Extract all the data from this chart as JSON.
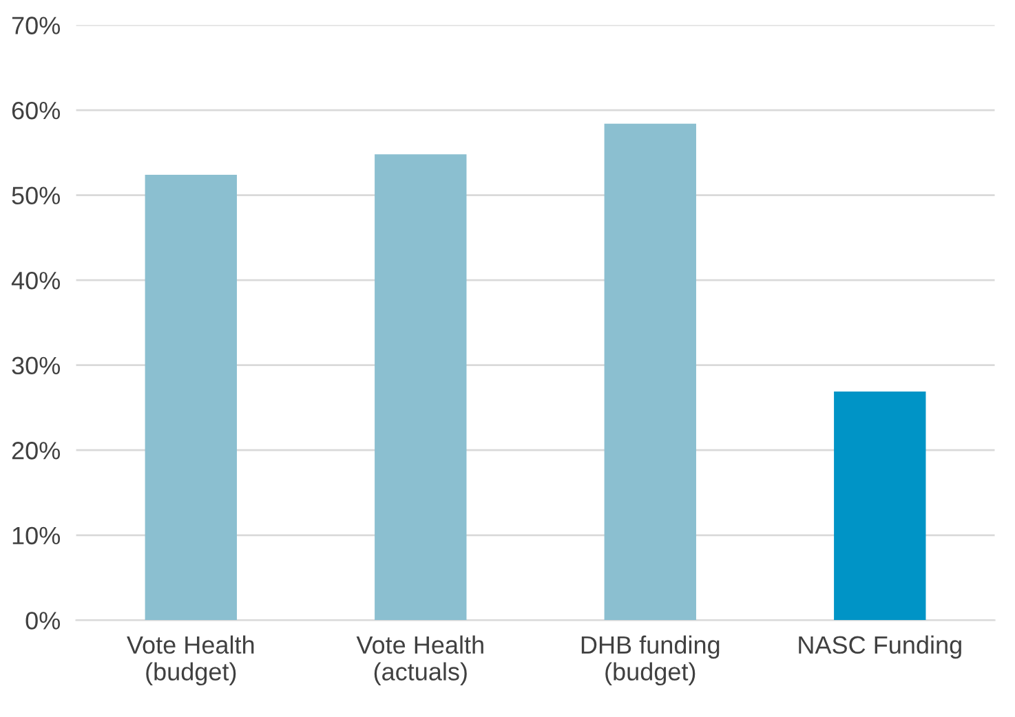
{
  "chart_data": {
    "type": "bar",
    "categories": [
      "Vote Health\n(budget)",
      "Vote Health\n(actuals)",
      "DHB funding\n(budget)",
      "NASC Funding"
    ],
    "values": [
      0.524,
      0.548,
      0.584,
      0.269
    ],
    "colors": [
      "#8bbfd0",
      "#8bbfd0",
      "#8bbfd0",
      "#0094c6"
    ],
    "ylim": [
      0,
      0.7
    ],
    "yticks": [
      {
        "value": 0,
        "label": "0%"
      },
      {
        "value": 0.1,
        "label": "10%"
      },
      {
        "value": 0.2,
        "label": "20%"
      },
      {
        "value": 0.3,
        "label": "30%"
      },
      {
        "value": 0.4,
        "label": "40%"
      },
      {
        "value": 0.5,
        "label": "50%"
      },
      {
        "value": 0.6,
        "label": "60%"
      },
      {
        "value": 0.7,
        "label": "70%"
      }
    ],
    "grid": "y"
  }
}
